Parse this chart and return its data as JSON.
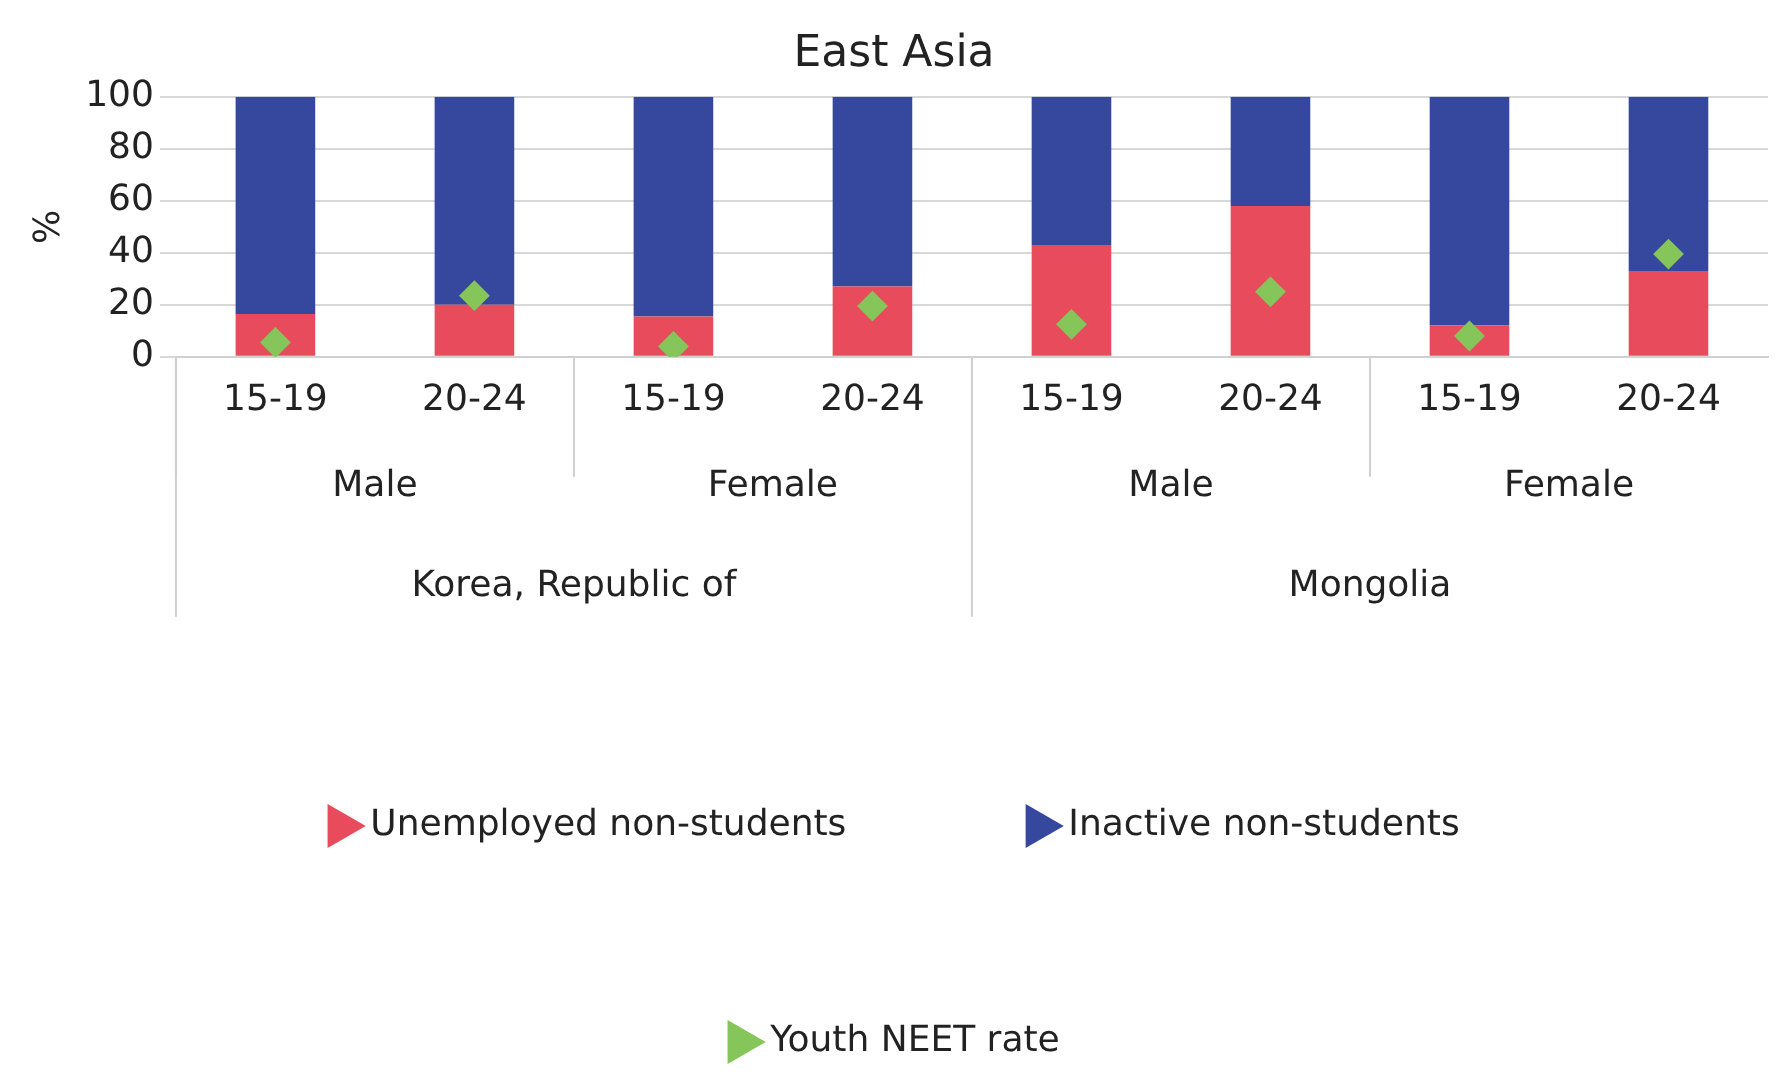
{
  "chart_data": {
    "type": "bar",
    "title": "East Asia",
    "ylabel": "%",
    "stacked": true,
    "categories": [
      "15-19",
      "20-24",
      "15-19",
      "20-24",
      "15-19",
      "20-24",
      "15-19",
      "20-24"
    ],
    "annotations": [
      "Male",
      "Female",
      "Male",
      "Female",
      "Korea, Republic of",
      "Mongolia"
    ],
    "series": [
      {
        "name": "Unemployed non-students",
        "color": "#e84c5c",
        "values": [
          16.5,
          20,
          15.5,
          27,
          43,
          58,
          12,
          33
        ]
      },
      {
        "name": "Inactive non-students",
        "color": "#36479e",
        "values": [
          83.5,
          80,
          84.5,
          73,
          57,
          42,
          88,
          67
        ]
      },
      {
        "name": "Youth NEET rate",
        "type": "scatter",
        "marker": "diamond",
        "color": "#86c55a",
        "values": [
          5.5,
          23.5,
          4,
          19.5,
          12.5,
          25,
          8,
          39.5
        ]
      }
    ],
    "ylim": [
      0,
      100
    ],
    "yticks": [
      0,
      20,
      40,
      60,
      80,
      100
    ],
    "grid": "y",
    "legend": "bottom"
  }
}
